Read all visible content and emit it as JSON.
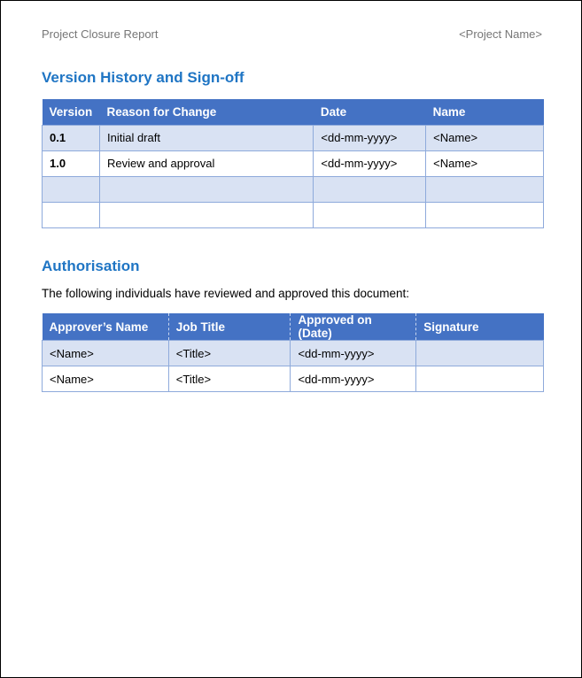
{
  "header": {
    "left": "Project Closure Report",
    "right": "<Project Name>"
  },
  "version_section": {
    "title": "Version History and Sign-off",
    "columns": [
      "Version",
      "Reason for Change",
      "Date",
      "Name"
    ],
    "rows": [
      [
        "0.1",
        "Initial draft",
        "<dd-mm-yyyy>",
        "<Name>"
      ],
      [
        "1.0",
        "Review and approval",
        "<dd-mm-yyyy>",
        "<Name>"
      ],
      [
        "",
        "",
        "",
        ""
      ],
      [
        "",
        "",
        "",
        ""
      ]
    ]
  },
  "auth_section": {
    "title": "Authorisation",
    "intro": "The following individuals have reviewed and approved this document:",
    "columns": [
      "Approver’s Name",
      "Job Title",
      "Approved on (Date)",
      "Signature"
    ],
    "rows": [
      [
        "<Name>",
        "<Title>",
        "<dd-mm-yyyy>",
        ""
      ],
      [
        "<Name>",
        "<Title>",
        "<dd-mm-yyyy>",
        ""
      ]
    ]
  }
}
